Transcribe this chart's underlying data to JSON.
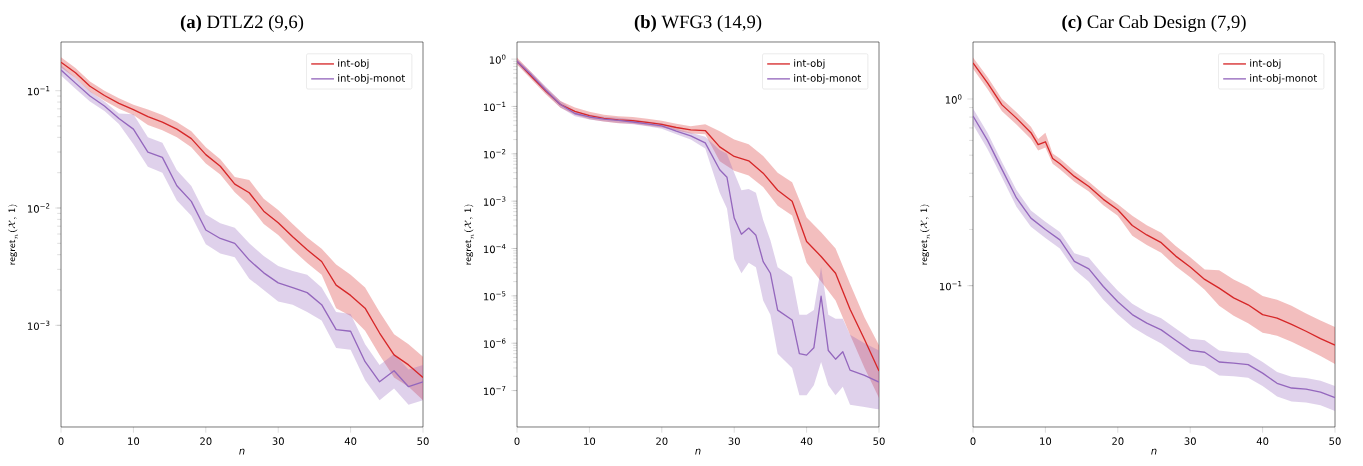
{
  "chart_data": [
    {
      "type": "line",
      "title": "**(a)** DTLZ2 (9,6)",
      "xlabel": "n",
      "ylabel": "\\mathsf{regret}_{n}(\\mathcal{X},\\,\\mathsf{1})",
      "log": "y",
      "legend": "top right",
      "xlim": [
        0,
        50
      ],
      "xticks": [
        0,
        10,
        20,
        30,
        40,
        50
      ],
      "ylim": [
        0.000136,
        0.26
      ],
      "yticks": [
        {
          "value": 0.001,
          "label": "10$^{−3}$"
        },
        {
          "value": 0.01,
          "label": "10$^{−2}$"
        },
        {
          "value": 0.1,
          "label": "10$^{−1}$"
        }
      ],
      "series": [
        {
          "name": "int-obj",
          "color": "#d62728",
          "x": [
            0,
            2,
            4,
            6,
            8,
            10,
            12,
            14,
            16,
            18,
            20,
            22,
            24,
            26,
            28,
            30,
            32,
            34,
            36,
            38,
            40,
            42,
            44,
            46,
            48,
            50
          ],
          "values": [
            0.175,
            0.142,
            0.109,
            0.091,
            0.078,
            0.069,
            0.06,
            0.054,
            0.047,
            0.039,
            0.0285,
            0.0227,
            0.016,
            0.0135,
            0.0094,
            0.0075,
            0.0057,
            0.0044,
            0.0035,
            0.0022,
            0.0018,
            0.0014,
            0.00086,
            0.00056,
            0.00046,
            0.00036
          ],
          "lower": [
            0.158,
            0.128,
            0.098,
            0.082,
            0.07,
            0.062,
            0.051,
            0.046,
            0.04,
            0.033,
            0.024,
            0.0193,
            0.0136,
            0.0105,
            0.0073,
            0.0059,
            0.0044,
            0.0034,
            0.0027,
            0.0014,
            0.0012,
            0.0009,
            0.00056,
            0.00036,
            0.0003,
            0.00023
          ],
          "upper": [
            0.193,
            0.156,
            0.12,
            0.1,
            0.086,
            0.076,
            0.069,
            0.062,
            0.054,
            0.045,
            0.033,
            0.026,
            0.0184,
            0.0173,
            0.012,
            0.0096,
            0.0073,
            0.0056,
            0.0045,
            0.0033,
            0.0027,
            0.0021,
            0.0013,
            0.00084,
            0.00069,
            0.00054
          ]
        },
        {
          "name": "int-obj-monot",
          "color": "#9467bd",
          "x": [
            0,
            2,
            4,
            6,
            8,
            10,
            12,
            14,
            16,
            18,
            20,
            22,
            24,
            26,
            28,
            30,
            32,
            34,
            36,
            38,
            40,
            42,
            44,
            46,
            48,
            50
          ],
          "values": [
            0.15,
            0.116,
            0.09,
            0.074,
            0.058,
            0.047,
            0.03,
            0.027,
            0.0155,
            0.0114,
            0.0065,
            0.0055,
            0.005,
            0.0036,
            0.0028,
            0.0023,
            0.0021,
            0.0019,
            0.0015,
            0.00092,
            0.00089,
            0.00049,
            0.00033,
            0.00041,
            0.0003,
            0.00033
          ],
          "lower": [
            0.135,
            0.104,
            0.081,
            0.067,
            0.052,
            0.035,
            0.0225,
            0.02,
            0.0116,
            0.0086,
            0.0049,
            0.0041,
            0.0038,
            0.0025,
            0.002,
            0.0016,
            0.0015,
            0.0013,
            0.0011,
            0.00064,
            0.00062,
            0.00034,
            0.00023,
            0.00029,
            0.00021,
            0.00023
          ],
          "upper": [
            0.165,
            0.128,
            0.099,
            0.081,
            0.064,
            0.063,
            0.04,
            0.036,
            0.021,
            0.0154,
            0.0088,
            0.0074,
            0.0068,
            0.005,
            0.0039,
            0.0032,
            0.0029,
            0.0027,
            0.0021,
            0.0013,
            0.00125,
            0.00069,
            0.00046,
            0.00057,
            0.00042,
            0.00046
          ]
        }
      ]
    },
    {
      "type": "line",
      "title": "**(b)** WFG3 (14,9)",
      "xlabel": "n",
      "ylabel": "\\mathsf{regret}_{n}(\\mathcal{X},\\,\\mathsf{1})",
      "log": "y",
      "legend": "top right",
      "xlim": [
        0,
        50
      ],
      "xticks": [
        0,
        10,
        20,
        30,
        40,
        50
      ],
      "ylim": [
        1.7e-08,
        2.3
      ],
      "yticks": [
        {
          "value": 1e-07,
          "label": "10$^{−7}$"
        },
        {
          "value": 1e-06,
          "label": "10$^{−6}$"
        },
        {
          "value": 1e-05,
          "label": "10$^{−5}$"
        },
        {
          "value": 0.0001,
          "label": "10$^{−4}$"
        },
        {
          "value": 0.001,
          "label": "10$^{−3}$"
        },
        {
          "value": 0.01,
          "label": "10$^{−2}$"
        },
        {
          "value": 0.1,
          "label": "10$^{−1}$"
        },
        {
          "value": 1,
          "label": "10$^{0}$"
        }
      ],
      "series": [
        {
          "name": "int-obj",
          "color": "#d62728",
          "x": [
            0,
            2,
            4,
            6,
            8,
            10,
            12,
            14,
            16,
            18,
            20,
            22,
            24,
            26,
            28,
            30,
            32,
            34,
            36,
            38,
            40,
            42,
            44,
            46,
            48,
            50
          ],
          "values": [
            0.9,
            0.43,
            0.21,
            0.11,
            0.079,
            0.064,
            0.056,
            0.052,
            0.05,
            0.046,
            0.042,
            0.036,
            0.032,
            0.031,
            0.014,
            0.0088,
            0.0071,
            0.0039,
            0.0017,
            0.001,
            0.00014,
            6.8e-05,
            3e-05,
            5.2e-06,
            1.2e-06,
            2.6e-07
          ],
          "lower": [
            0.77,
            0.37,
            0.18,
            0.094,
            0.067,
            0.054,
            0.048,
            0.044,
            0.043,
            0.039,
            0.036,
            0.031,
            0.027,
            0.026,
            0.007,
            0.0044,
            0.0035,
            0.002,
            0.0008,
            0.0005,
            5e-05,
            2e-05,
            8e-06,
            1.5e-06,
            3e-07,
            7e-08
          ],
          "upper": [
            1.08,
            0.52,
            0.25,
            0.13,
            0.095,
            0.077,
            0.067,
            0.062,
            0.06,
            0.055,
            0.05,
            0.043,
            0.038,
            0.042,
            0.03,
            0.02,
            0.016,
            0.009,
            0.004,
            0.0025,
            0.00045,
            0.00022,
            0.0001,
            1.8e-05,
            3.5e-06,
            9e-07
          ]
        },
        {
          "name": "int-obj-monot",
          "color": "#9467bd",
          "x": [
            0,
            2,
            4,
            6,
            8,
            10,
            12,
            14,
            16,
            18,
            20,
            22,
            24,
            26,
            28,
            29,
            30,
            31,
            32,
            33,
            34,
            35,
            36,
            38,
            39,
            40,
            41,
            42,
            43,
            44,
            45,
            46,
            48,
            50
          ],
          "values": [
            0.9,
            0.46,
            0.22,
            0.11,
            0.071,
            0.06,
            0.054,
            0.051,
            0.047,
            0.043,
            0.039,
            0.03,
            0.024,
            0.017,
            0.0046,
            0.0032,
            0.00044,
            0.0002,
            0.00027,
            0.00019,
            5.3e-05,
            3e-05,
            5e-06,
            3.1e-06,
            6e-07,
            5.6e-07,
            8e-07,
            9.8e-06,
            7e-07,
            4.6e-07,
            6.6e-07,
            2.7e-07,
            2.1e-07,
            1.5e-07
          ],
          "lower": [
            0.8,
            0.4,
            0.19,
            0.095,
            0.062,
            0.053,
            0.048,
            0.045,
            0.042,
            0.038,
            0.034,
            0.026,
            0.02,
            0.013,
            0.0015,
            0.0007,
            6e-05,
            3e-05,
            5e-05,
            4e-05,
            8e-06,
            4e-06,
            6e-07,
            3e-07,
            8e-08,
            8e-08,
            1.3e-07,
            4e-07,
            1.3e-07,
            8e-08,
            1.2e-07,
            5e-08,
            4.5e-08,
            4e-08
          ],
          "upper": [
            1.0,
            0.53,
            0.26,
            0.13,
            0.08,
            0.068,
            0.061,
            0.058,
            0.053,
            0.048,
            0.044,
            0.034,
            0.028,
            0.023,
            0.012,
            0.01,
            0.004,
            0.0017,
            0.0018,
            0.0015,
            0.0004,
            0.00015,
            4e-05,
            2.5e-05,
            4e-06,
            4e-06,
            5e-06,
            4e-05,
            4e-06,
            3.3e-06,
            3.3e-06,
            1.5e-06,
            1e-06,
            7e-07
          ]
        }
      ]
    },
    {
      "type": "line",
      "title": "**(c)** Car Cab Design (7,9)",
      "xlabel": "n",
      "ylabel": "\\mathsf{regret}_{n}(\\mathcal{X},\\,\\mathsf{1})",
      "log": "y",
      "legend": "top right",
      "xlim": [
        0,
        50
      ],
      "xticks": [
        0,
        10,
        20,
        30,
        40,
        50
      ],
      "ylim": [
        0.0175,
        2.02
      ],
      "yticks": [
        {
          "value": 0.1,
          "label": "10$^{−1}$"
        },
        {
          "value": 1,
          "label": "10$^{0}$"
        }
      ],
      "series": [
        {
          "name": "int-obj",
          "color": "#d62728",
          "x": [
            0,
            2,
            4,
            6,
            8,
            9,
            10,
            11,
            12,
            14,
            16,
            18,
            20,
            22,
            24,
            26,
            28,
            30,
            32,
            34,
            36,
            38,
            40,
            42,
            44,
            46,
            48,
            50
          ],
          "values": [
            1.56,
            1.22,
            0.93,
            0.79,
            0.66,
            0.57,
            0.59,
            0.48,
            0.45,
            0.385,
            0.34,
            0.29,
            0.255,
            0.21,
            0.187,
            0.17,
            0.144,
            0.126,
            0.108,
            0.097,
            0.086,
            0.079,
            0.07,
            0.067,
            0.062,
            0.057,
            0.052,
            0.048
          ],
          "lower": [
            1.45,
            1.13,
            0.86,
            0.73,
            0.61,
            0.53,
            0.55,
            0.45,
            0.42,
            0.36,
            0.32,
            0.27,
            0.237,
            0.185,
            0.165,
            0.15,
            0.127,
            0.111,
            0.095,
            0.078,
            0.069,
            0.063,
            0.056,
            0.054,
            0.05,
            0.046,
            0.042,
            0.038
          ],
          "upper": [
            1.67,
            1.31,
            1.0,
            0.85,
            0.71,
            0.61,
            0.66,
            0.51,
            0.48,
            0.41,
            0.36,
            0.31,
            0.273,
            0.237,
            0.211,
            0.192,
            0.163,
            0.142,
            0.122,
            0.121,
            0.108,
            0.099,
            0.088,
            0.084,
            0.078,
            0.071,
            0.065,
            0.06
          ]
        },
        {
          "name": "int-obj-monot",
          "color": "#9467bd",
          "x": [
            0,
            2,
            4,
            6,
            8,
            10,
            12,
            14,
            16,
            18,
            20,
            22,
            24,
            26,
            28,
            30,
            32,
            34,
            36,
            38,
            40,
            42,
            44,
            46,
            48,
            50
          ],
          "values": [
            0.81,
            0.6,
            0.42,
            0.295,
            0.23,
            0.2,
            0.176,
            0.135,
            0.123,
            0.099,
            0.082,
            0.07,
            0.063,
            0.058,
            0.051,
            0.045,
            0.044,
            0.039,
            0.0385,
            0.0378,
            0.034,
            0.03,
            0.0283,
            0.0279,
            0.0269,
            0.0251
          ],
          "lower": [
            0.73,
            0.54,
            0.38,
            0.265,
            0.207,
            0.18,
            0.158,
            0.122,
            0.105,
            0.084,
            0.07,
            0.06,
            0.054,
            0.049,
            0.043,
            0.038,
            0.037,
            0.033,
            0.0327,
            0.0321,
            0.029,
            0.0255,
            0.024,
            0.0237,
            0.0229,
            0.0213
          ],
          "upper": [
            0.89,
            0.66,
            0.46,
            0.325,
            0.253,
            0.22,
            0.194,
            0.149,
            0.141,
            0.114,
            0.094,
            0.08,
            0.072,
            0.067,
            0.059,
            0.052,
            0.051,
            0.045,
            0.044,
            0.0435,
            0.039,
            0.0345,
            0.0325,
            0.032,
            0.031,
            0.029
          ]
        }
      ]
    }
  ]
}
